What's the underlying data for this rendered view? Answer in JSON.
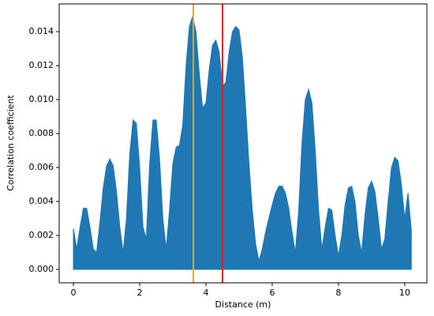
{
  "chart_data": {
    "type": "area",
    "xlabel": "Distance (m)",
    "ylabel": "Correlation coefficient",
    "color": "#1f77b4",
    "x": [
      0.0,
      0.1,
      0.2,
      0.3,
      0.4,
      0.5,
      0.6,
      0.7,
      0.8,
      0.9,
      1.0,
      1.1,
      1.2,
      1.3,
      1.4,
      1.5,
      1.6,
      1.7,
      1.8,
      1.9,
      2.0,
      2.1,
      2.2,
      2.3,
      2.4,
      2.5,
      2.6,
      2.7,
      2.8,
      2.9,
      3.0,
      3.1,
      3.2,
      3.3,
      3.4,
      3.5,
      3.6,
      3.7,
      3.8,
      3.9,
      4.0,
      4.1,
      4.2,
      4.3,
      4.4,
      4.5,
      4.6,
      4.7,
      4.8,
      4.9,
      5.0,
      5.1,
      5.2,
      5.3,
      5.4,
      5.5,
      5.6,
      5.7,
      5.8,
      5.9,
      6.0,
      6.1,
      6.2,
      6.3,
      6.4,
      6.5,
      6.6,
      6.7,
      6.8,
      6.9,
      7.0,
      7.1,
      7.2,
      7.3,
      7.4,
      7.5,
      7.6,
      7.7,
      7.8,
      7.9,
      8.0,
      8.1,
      8.2,
      8.3,
      8.4,
      8.5,
      8.6,
      8.7,
      8.8,
      8.9,
      9.0,
      9.1,
      9.2,
      9.3,
      9.4,
      9.5,
      9.6,
      9.7,
      9.8,
      9.9,
      10.0,
      10.1,
      10.2
    ],
    "values": [
      0.0024,
      0.0012,
      0.0025,
      0.0036,
      0.0036,
      0.0025,
      0.0012,
      0.001,
      0.0028,
      0.0048,
      0.0061,
      0.0065,
      0.0061,
      0.0046,
      0.0025,
      0.001,
      0.003,
      0.0068,
      0.0088,
      0.0086,
      0.006,
      0.0025,
      0.0018,
      0.0062,
      0.0088,
      0.0088,
      0.0065,
      0.003,
      0.0012,
      0.0035,
      0.0062,
      0.0072,
      0.0073,
      0.0085,
      0.012,
      0.0143,
      0.0149,
      0.014,
      0.0115,
      0.0095,
      0.0098,
      0.0118,
      0.0132,
      0.0135,
      0.0128,
      0.0108,
      0.011,
      0.0128,
      0.014,
      0.0143,
      0.0141,
      0.0125,
      0.0095,
      0.0062,
      0.0035,
      0.0015,
      0.0005,
      0.0012,
      0.0022,
      0.003,
      0.0038,
      0.0045,
      0.0049,
      0.0049,
      0.0045,
      0.0036,
      0.0022,
      0.001,
      0.0035,
      0.0075,
      0.01,
      0.0106,
      0.0098,
      0.007,
      0.0035,
      0.0012,
      0.0025,
      0.0036,
      0.0035,
      0.002,
      0.0008,
      0.002,
      0.0038,
      0.0048,
      0.0049,
      0.004,
      0.002,
      0.001,
      0.0032,
      0.0048,
      0.0052,
      0.0046,
      0.003,
      0.0012,
      0.0018,
      0.004,
      0.006,
      0.0066,
      0.0064,
      0.005,
      0.003,
      0.0045,
      0.0023
    ],
    "vlines": [
      {
        "x": 3.62,
        "color": "#f5a50a"
      },
      {
        "x": 4.5,
        "color": "#d62728"
      }
    ],
    "xlim": [
      -0.43,
      10.67
    ],
    "ylim": [
      -0.00079,
      0.01563
    ],
    "xticks": [
      0,
      2,
      4,
      6,
      8,
      10
    ],
    "yticks": [
      {
        "value": 0,
        "label": "0.000"
      },
      {
        "value": 0.002,
        "label": "0.002"
      },
      {
        "value": 0.004,
        "label": "0.004"
      },
      {
        "value": 0.006,
        "label": "0.006"
      },
      {
        "value": 0.008,
        "label": "0.008"
      },
      {
        "value": 0.01,
        "label": "0.010"
      },
      {
        "value": 0.012,
        "label": "0.012"
      },
      {
        "value": 0.014,
        "label": "0.014"
      }
    ]
  }
}
